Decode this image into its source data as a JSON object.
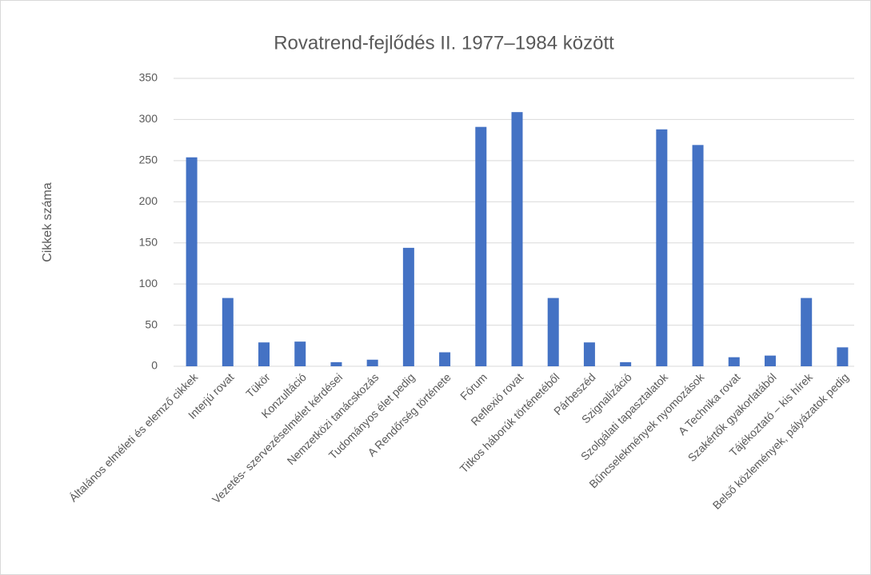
{
  "chart_data": {
    "type": "bar",
    "title": "Rovatrend-fejlődés II. 1977–1984 között",
    "y_label": "Cikkek száma",
    "categories": [
      "Általános elméleti és elemző cikkek",
      "Interjú rovat",
      "Tükör",
      "Konzultáció",
      "Vezetés- szervezéselmélet kérdései",
      "Nemzetközi tanácskozás",
      "Tudományos élet pedig",
      "A Rendőrség története",
      "Fórum",
      "Reflexió rovat",
      "Titkos háborúk történetéből",
      "Párbeszéd",
      "Szignalizáció",
      "Szolgálati tapasztalatok",
      "Bűncselekmények nyomozások",
      "A Technika rovat",
      "Szakértők gyakorlatából",
      "Tájékoztató – kis hírek",
      "Belső közlemények, pályázatok pedig"
    ],
    "values": [
      254,
      83,
      29,
      30,
      5,
      8,
      144,
      17,
      291,
      309,
      83,
      29,
      5,
      288,
      269,
      11,
      13,
      83,
      23
    ],
    "color": "#4472c4",
    "ylim": [
      0,
      350
    ],
    "yticks": [
      0,
      50,
      100,
      150,
      200,
      250,
      300,
      350
    ],
    "grid": true
  }
}
